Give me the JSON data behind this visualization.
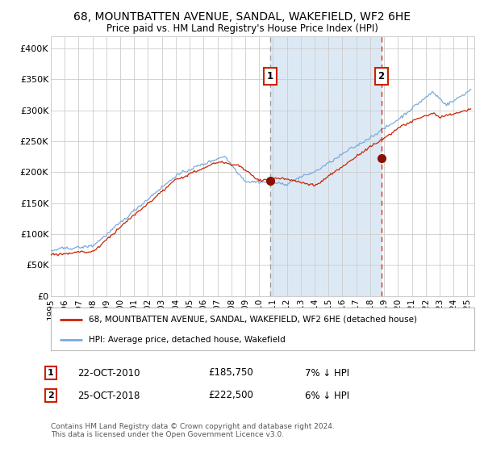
{
  "title": "68, MOUNTBATTEN AVENUE, SANDAL, WAKEFIELD, WF2 6HE",
  "subtitle": "Price paid vs. HM Land Registry's House Price Index (HPI)",
  "legend_line1": "68, MOUNTBATTEN AVENUE, SANDAL, WAKEFIELD, WF2 6HE (detached house)",
  "legend_line2": "HPI: Average price, detached house, Wakefield",
  "annotation1_box": "1",
  "annotation1_date": "22-OCT-2010",
  "annotation1_price": "£185,750",
  "annotation1_hpi": "7% ↓ HPI",
  "annotation2_box": "2",
  "annotation2_date": "25-OCT-2018",
  "annotation2_price": "£222,500",
  "annotation2_hpi": "6% ↓ HPI",
  "footnote": "Contains HM Land Registry data © Crown copyright and database right 2024.\nThis data is licensed under the Open Government Licence v3.0.",
  "red_line_color": "#cc2200",
  "blue_line_color": "#7aaadd",
  "shade_color": "#dce9f5",
  "dashed1_color": "#999999",
  "dashed2_color": "#cc2200",
  "marker_color": "#881100",
  "grid_color": "#cccccc",
  "bg_color": "#ffffff",
  "annotation_box_color": "#cc2200",
  "ylim": [
    0,
    420000
  ],
  "ytick_values": [
    0,
    50000,
    100000,
    150000,
    200000,
    250000,
    300000,
    350000,
    400000
  ],
  "ytick_labels": [
    "£0",
    "£50K",
    "£100K",
    "£150K",
    "£200K",
    "£250K",
    "£300K",
    "£350K",
    "£400K"
  ],
  "sale1_year": 2010.8,
  "sale1_price": 185750,
  "sale2_year": 2018.8,
  "sale2_price": 222500
}
